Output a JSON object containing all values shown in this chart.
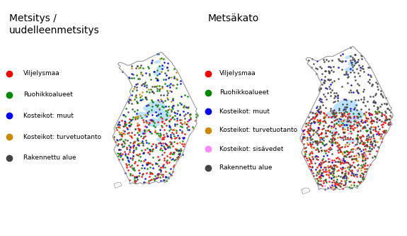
{
  "title_left": "Metsitys /\nuudelleenmetsitys",
  "title_right": "Metsäkato",
  "background_color": "#ffffff",
  "legend_left": [
    {
      "label": "Viljelysmaa",
      "color": "#ff0000"
    },
    {
      "label": "Ruohikkoalueet",
      "color": "#008800"
    },
    {
      "label": "Kosteikot: muut",
      "color": "#0000ff"
    },
    {
      "label": "Kosteikot: turvetuotanto",
      "color": "#cc8800"
    },
    {
      "label": "Rakennettu alue",
      "color": "#444444"
    }
  ],
  "legend_right": [
    {
      "label": "Viljelysmaa",
      "color": "#ff0000"
    },
    {
      "label": "Ruohikkoalueet",
      "color": "#008800"
    },
    {
      "label": "Kosteikot: muut",
      "color": "#0000ff"
    },
    {
      "label": "Kosteikot: turvetuotanto",
      "color": "#cc8800"
    },
    {
      "label": "Kosteikot: sisävedet",
      "color": "#ff88ff"
    },
    {
      "label": "Rakennettu alue",
      "color": "#444444"
    }
  ],
  "dot_size": 3.5,
  "map_outline_color": "#999999",
  "lake_color": "#aaddff",
  "title_fontsize": 10,
  "legend_fontsize": 6.5
}
